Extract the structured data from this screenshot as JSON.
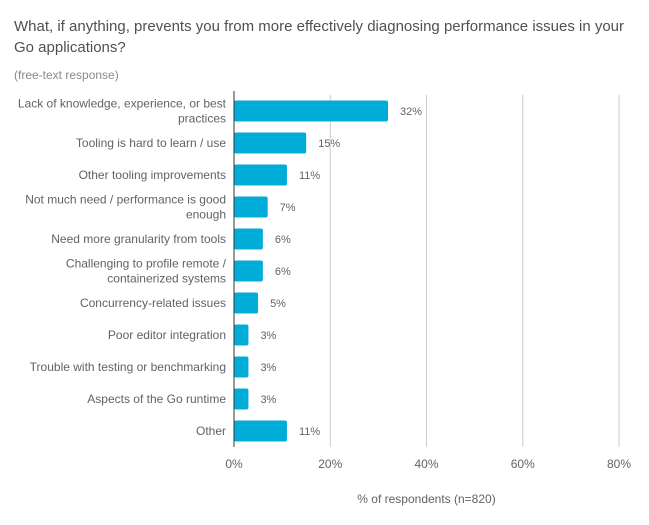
{
  "title": "What, if anything, prevents you from more effectively diagnosing performance issues in your Go applications?",
  "subtitle": "(free-text response)",
  "colors": {
    "bar": "#00ADD8",
    "grid": "#cccccc",
    "axis": "#333333",
    "text": "#5f6368"
  },
  "chart_data": {
    "type": "bar",
    "orientation": "horizontal",
    "categories": [
      [
        "Lack of knowledge, experience, or best",
        "practices"
      ],
      [
        "Tooling is hard to learn / use"
      ],
      [
        "Other tooling improvements"
      ],
      [
        "Not much need / performance is good",
        "enough"
      ],
      [
        "Need more granularity from tools"
      ],
      [
        "Challenging to profile remote /",
        "containerized systems"
      ],
      [
        "Concurrency-related issues"
      ],
      [
        "Poor editor integration"
      ],
      [
        "Trouble with testing or benchmarking"
      ],
      [
        "Aspects of the Go runtime"
      ],
      [
        "Other"
      ]
    ],
    "values": [
      32,
      15,
      11,
      7,
      6,
      6,
      5,
      3,
      3,
      3,
      11
    ],
    "value_labels": [
      "32%",
      "15%",
      "11%",
      "7%",
      "6%",
      "6%",
      "5%",
      "3%",
      "3%",
      "3%",
      "11%"
    ],
    "xticks": [
      0,
      20,
      40,
      60,
      80
    ],
    "xtick_labels": [
      "0%",
      "20%",
      "40%",
      "60%",
      "80%"
    ],
    "xlim": [
      0,
      80
    ],
    "xlabel": "% of respondents (n=820)",
    "grid": true
  }
}
